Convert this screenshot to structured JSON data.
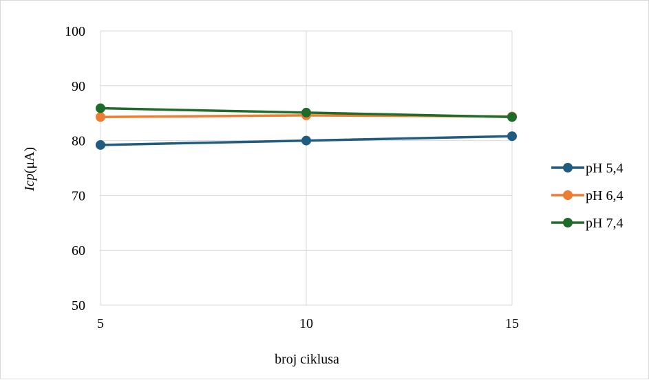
{
  "chart_data": {
    "type": "line",
    "x": [
      5,
      10,
      15
    ],
    "xticks": [
      "5",
      "10",
      "15"
    ],
    "yticks": [
      "50",
      "60",
      "70",
      "80",
      "90",
      "100"
    ],
    "ylim": [
      50,
      100
    ],
    "xlabel": "broj ciklusa",
    "ylabel": {
      "italic": "Icp",
      "unit": "(μA)"
    },
    "grid": true,
    "legend_position": "right",
    "series": [
      {
        "name": "pH 5,4",
        "color": "#1f5c80",
        "values": [
          79.2,
          80.0,
          80.8
        ]
      },
      {
        "name": "pH 6,4",
        "color": "#ed7d31",
        "values": [
          84.3,
          84.6,
          84.4
        ]
      },
      {
        "name": "pH 7,4",
        "color": "#1e6b2a",
        "values": [
          85.9,
          85.1,
          84.3
        ]
      }
    ]
  }
}
